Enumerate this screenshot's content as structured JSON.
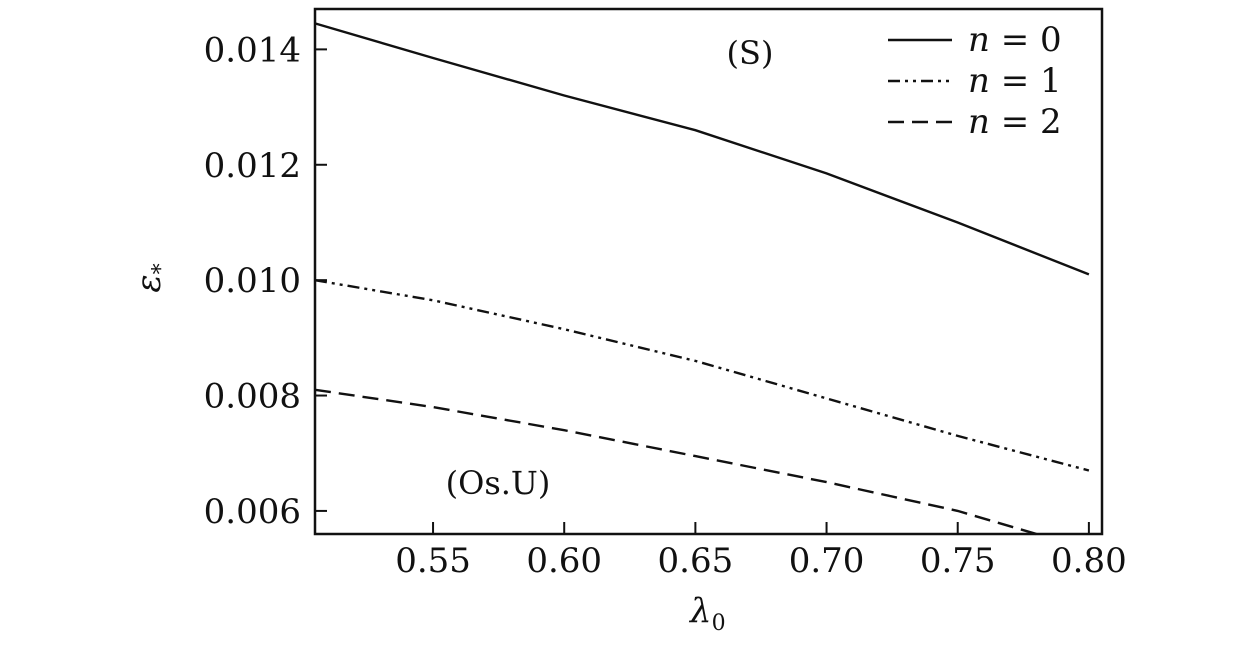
{
  "chart_data": {
    "type": "line",
    "xlabel": "λ",
    "xlabel_sub": "0",
    "ylabel": "ε",
    "ylabel_sub": "*",
    "xlim": [
      0.505,
      0.805
    ],
    "ylim": [
      0.0056,
      0.0147
    ],
    "xticks": [
      0.55,
      0.6,
      0.65,
      0.7,
      0.75,
      0.8
    ],
    "xtick_labels": [
      "0.55",
      "0.60",
      "0.65",
      "0.70",
      "0.75",
      "0.80"
    ],
    "yticks": [
      0.006,
      0.008,
      0.01,
      0.012,
      0.014
    ],
    "ytick_labels": [
      "0.006",
      "0.008",
      "0.010",
      "0.012",
      "0.014"
    ],
    "grid": false,
    "legend_position": "top-right",
    "annotations": [
      "(S)",
      "(Os.U)"
    ],
    "series": [
      {
        "name": "n = 0",
        "legend_n": "n",
        "legend_value": "0",
        "style": "solid",
        "x": [
          0.505,
          0.55,
          0.6,
          0.65,
          0.7,
          0.75,
          0.8
        ],
        "y": [
          0.01445,
          0.01385,
          0.0132,
          0.0126,
          0.01185,
          0.011,
          0.0101
        ]
      },
      {
        "name": "n = 1",
        "legend_n": "n",
        "legend_value": "1",
        "style": "dashdot",
        "x": [
          0.505,
          0.55,
          0.6,
          0.65,
          0.7,
          0.75,
          0.8
        ],
        "y": [
          0.01,
          0.00965,
          0.00915,
          0.0086,
          0.00795,
          0.0073,
          0.0067
        ]
      },
      {
        "name": "n = 2",
        "legend_n": "n",
        "legend_value": "2",
        "style": "dashed",
        "x": [
          0.505,
          0.55,
          0.6,
          0.65,
          0.7,
          0.75,
          0.78
        ],
        "y": [
          0.0081,
          0.0078,
          0.0074,
          0.00695,
          0.0065,
          0.006,
          0.0056
        ]
      }
    ]
  }
}
